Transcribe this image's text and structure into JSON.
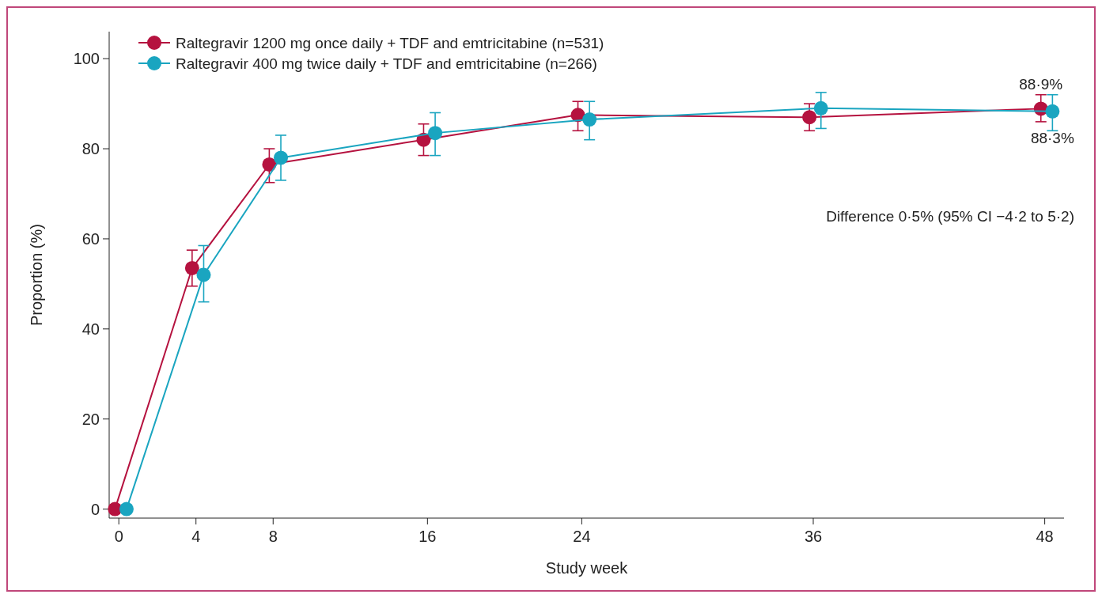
{
  "chart_data": {
    "type": "line",
    "xlabel": "Study week",
    "ylabel": "Proportion (%)",
    "xlim": [
      -0.5,
      49
    ],
    "xticks": [
      0,
      4,
      8,
      16,
      24,
      36,
      48
    ],
    "ylim": [
      -2,
      106
    ],
    "yticks": [
      0,
      20,
      40,
      60,
      80,
      100
    ],
    "grid": false,
    "legend": "top left",
    "marker": "circle",
    "line_style": "solid",
    "series": [
      {
        "name": "Raltegravir 1200 mg once daily + TDF and emtricitabine (n=531)",
        "color": "#b5123f",
        "x": [
          -0.2,
          3.8,
          7.8,
          15.8,
          23.8,
          35.8,
          47.8
        ],
        "values": [
          0,
          53.5,
          76.5,
          82,
          87.5,
          87,
          88.9
        ],
        "errors": [
          null,
          [
            49.5,
            57.5
          ],
          [
            72.5,
            80
          ],
          [
            78.5,
            85.5
          ],
          [
            84,
            90.5
          ],
          [
            84,
            90
          ],
          [
            86,
            92
          ]
        ]
      },
      {
        "name": "Raltegravir 400 mg twice daily + TDF and emtricitabine (n=266)",
        "color": "#1aa5c0",
        "x": [
          0.4,
          4.4,
          8.4,
          16.4,
          24.4,
          36.4,
          48.4
        ],
        "values": [
          0,
          52,
          78,
          83.5,
          86.5,
          89,
          88.3
        ],
        "errors": [
          null,
          [
            46,
            58.5
          ],
          [
            73,
            83
          ],
          [
            78.5,
            88
          ],
          [
            82,
            90.5
          ],
          [
            84.5,
            92.5
          ],
          [
            84,
            92
          ]
        ]
      }
    ],
    "annotations": [
      {
        "text": "88·9%",
        "x": 47.8,
        "y": 88.9
      },
      {
        "text": "88·3%",
        "x": 48.4,
        "y": 88.3
      },
      "Difference 0·5% (95% CI −4·2 to 5·2)"
    ]
  }
}
